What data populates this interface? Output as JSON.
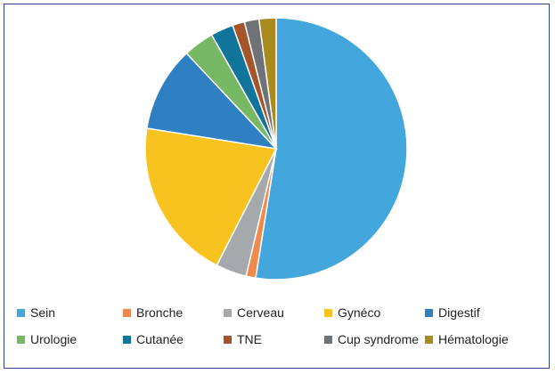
{
  "chart_data": {
    "type": "pie",
    "title": "",
    "start_angle_deg": 0,
    "direction": "clockwise",
    "slices": [
      {
        "label": "Sein",
        "value": 52.5,
        "color": "#43a6dc"
      },
      {
        "label": "Bronche",
        "value": 1.2,
        "color": "#ee8a4e"
      },
      {
        "label": "Cerveau",
        "value": 3.8,
        "color": "#a5a9ac"
      },
      {
        "label": "Gynéco",
        "value": 20.0,
        "color": "#f8c21f"
      },
      {
        "label": "Digestif",
        "value": 10.5,
        "color": "#2f7fc3"
      },
      {
        "label": "Urologie",
        "value": 3.8,
        "color": "#76b864"
      },
      {
        "label": "Cutanée",
        "value": 2.8,
        "color": "#11749a"
      },
      {
        "label": "TNE",
        "value": 1.5,
        "color": "#a4552a"
      },
      {
        "label": "Cup syndrome",
        "value": 1.8,
        "color": "#6f7378"
      },
      {
        "label": "Hématologie",
        "value": 2.1,
        "color": "#a88a1f"
      }
    ],
    "legend": "bottom"
  }
}
